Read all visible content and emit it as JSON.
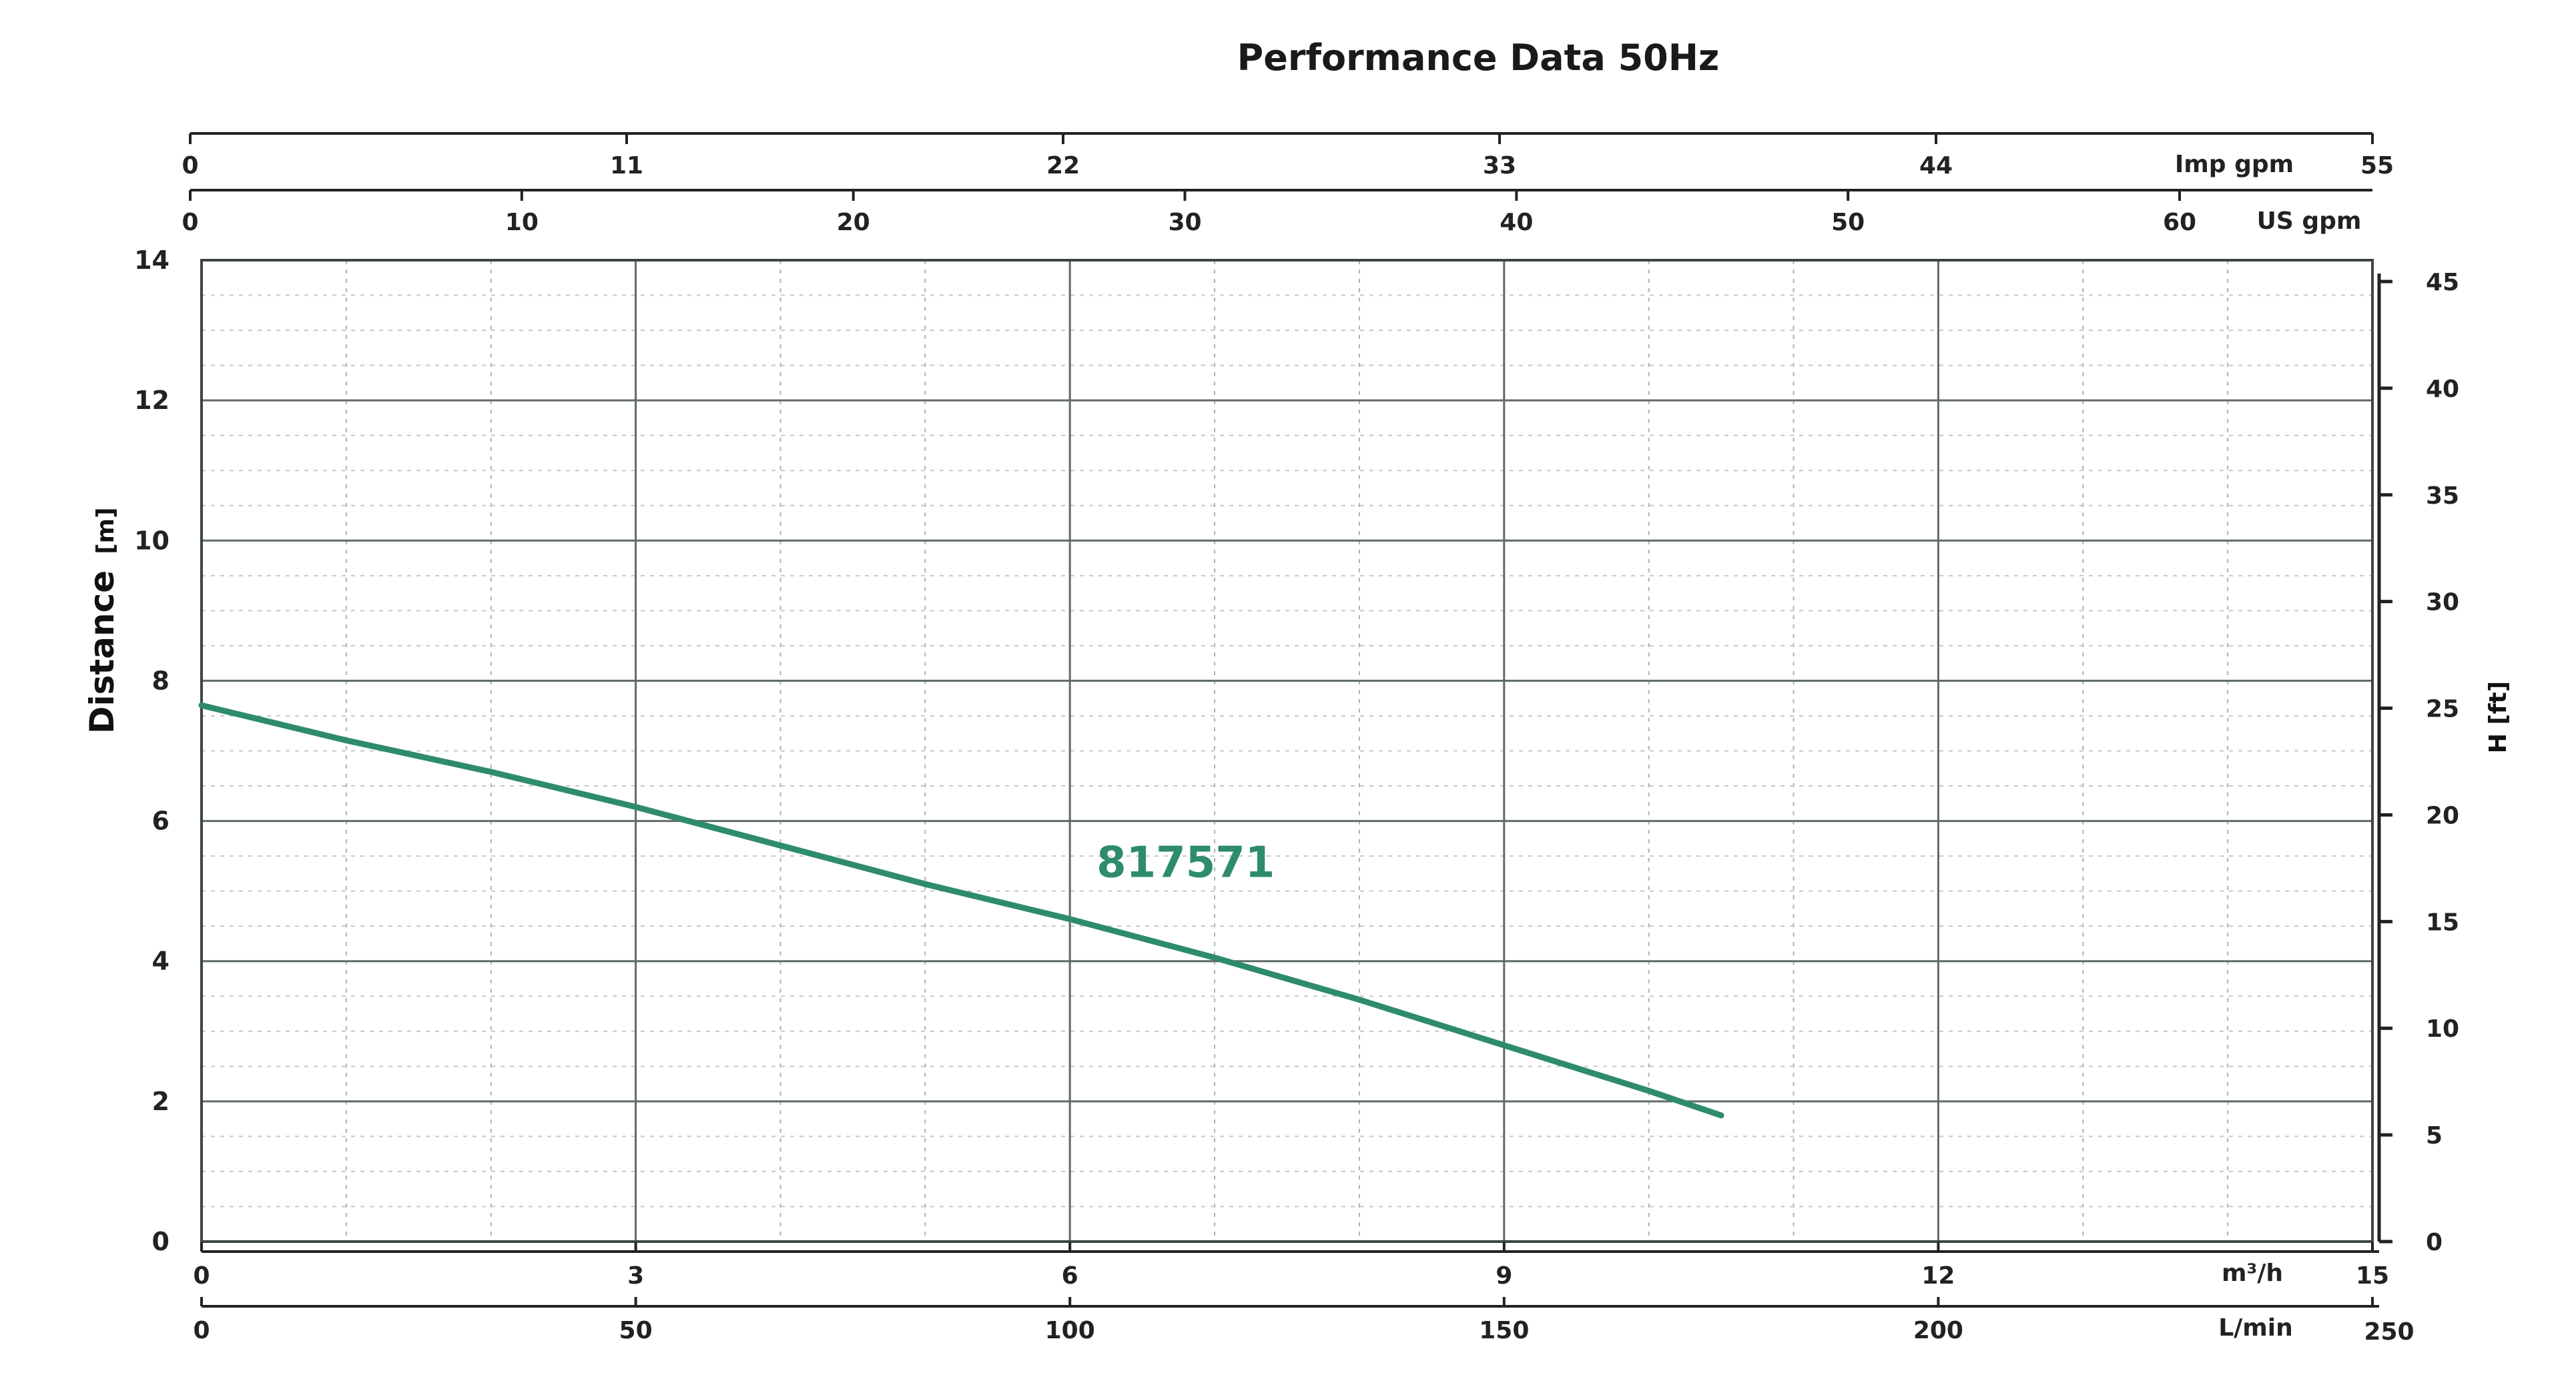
{
  "chart_data": {
    "type": "line",
    "title": "Performance Data 50Hz",
    "ylabel": "Distance",
    "ylabel_unit": "[m]",
    "ylabel_right": "H [ft]",
    "ylim": [
      0,
      14
    ],
    "y_ticks": [
      "0",
      "2",
      "4",
      "6",
      "8",
      "10",
      "12",
      "14"
    ],
    "y_right_ticks": [
      "0",
      "5",
      "10",
      "15",
      "20",
      "25",
      "30",
      "35",
      "40",
      "45"
    ],
    "xlim": [
      0,
      15
    ],
    "x_ticks_m3h": [
      "0",
      "3",
      "6",
      "9",
      "12",
      "15"
    ],
    "x_unit_m3h": "m³/h",
    "x_ticks_lmin": [
      "0",
      "50",
      "100",
      "150",
      "200",
      "250"
    ],
    "x_unit_lmin": "L/min",
    "top_axis_us": {
      "label": "US gpm",
      "ticks": [
        "0",
        "10",
        "20",
        "30",
        "40",
        "50",
        "60"
      ]
    },
    "top_axis_imp": {
      "label": "Imp gpm",
      "ticks": [
        "0",
        "11",
        "22",
        "33",
        "44",
        "55"
      ]
    },
    "grid": true,
    "series": [
      {
        "name": "817571",
        "color": "#2e8b6e",
        "x": [
          0,
          1,
          2,
          3,
          4,
          5,
          6,
          7,
          8,
          9,
          10,
          10.5
        ],
        "y": [
          7.65,
          7.15,
          6.7,
          6.2,
          5.65,
          5.1,
          4.6,
          4.05,
          3.45,
          2.8,
          2.15,
          1.8
        ]
      }
    ]
  }
}
